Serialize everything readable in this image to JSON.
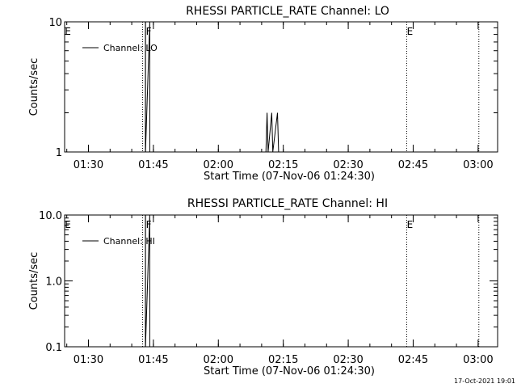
{
  "chart_data": [
    {
      "type": "line",
      "title": "RHESSI PARTICLE_RATE Channel: LO",
      "xlabel": "Start Time (07-Nov-06 01:24:30)",
      "ylabel": "Counts/sec",
      "y_scale": "log",
      "ylim": [
        1,
        10
      ],
      "ytick_labels": [
        {
          "value": 1,
          "label": "1"
        },
        {
          "value": 10,
          "label": "10"
        }
      ],
      "xtick_labels": [
        "01:30",
        "01:45",
        "02:00",
        "02:15",
        "02:30",
        "02:45",
        "03:00"
      ],
      "xlim": [
        "01:24:30",
        "03:04:30"
      ],
      "legend": {
        "entry": "Channel: LO",
        "position": "top-left"
      },
      "series": [
        {
          "name": "Channel: LO",
          "points": [
            [
              "01:43:10",
              10
            ],
            [
              "01:43:10",
              1
            ],
            [
              "01:44:10",
              10
            ],
            [
              "01:44:10",
              1
            ],
            [
              "02:11:00",
              1
            ],
            [
              "02:11:15",
              2
            ],
            [
              "02:11:30",
              1
            ],
            [
              "02:12:20",
              2
            ],
            [
              "02:12:35",
              1
            ],
            [
              "02:13:40",
              2
            ],
            [
              "02:13:55",
              1
            ]
          ]
        }
      ],
      "markers": [
        {
          "time": "01:24:30",
          "label": "E",
          "style": "solid"
        },
        {
          "time": "01:42:30",
          "label": "",
          "style": "dotted"
        },
        {
          "time": "01:43:10",
          "label": "F",
          "style": "solid"
        },
        {
          "time": "02:43:30",
          "label": "E",
          "style": "dotted"
        },
        {
          "time": "03:00:10",
          "label": "",
          "style": "dotted"
        }
      ]
    },
    {
      "type": "line",
      "title": "RHESSI PARTICLE_RATE Channel: HI",
      "xlabel": "Start Time (07-Nov-06 01:24:30)",
      "ylabel": "Counts/sec",
      "y_scale": "log",
      "ylim": [
        0.1,
        10
      ],
      "ytick_labels": [
        {
          "value": 0.1,
          "label": "0.1"
        },
        {
          "value": 1,
          "label": "1.0"
        },
        {
          "value": 10,
          "label": "10.0"
        }
      ],
      "xtick_labels": [
        "01:30",
        "01:45",
        "02:00",
        "02:15",
        "02:30",
        "02:45",
        "03:00"
      ],
      "xlim": [
        "01:24:30",
        "03:04:30"
      ],
      "legend": {
        "entry": "Channel: HI",
        "position": "top-left"
      },
      "series": [
        {
          "name": "Channel: HI",
          "points": [
            [
              "01:43:10",
              10
            ],
            [
              "01:43:10",
              0.1
            ],
            [
              "01:44:10",
              10
            ],
            [
              "01:44:10",
              0.1
            ]
          ]
        }
      ],
      "markers": [
        {
          "time": "01:24:30",
          "label": "E",
          "style": "solid"
        },
        {
          "time": "01:42:30",
          "label": "",
          "style": "dotted"
        },
        {
          "time": "01:43:10",
          "label": "F",
          "style": "solid"
        },
        {
          "time": "02:43:30",
          "label": "E",
          "style": "dotted"
        },
        {
          "time": "03:00:10",
          "label": "",
          "style": "dotted"
        }
      ]
    }
  ],
  "footer": {
    "timestamp": "17-Oct-2021 19:01"
  },
  "colors": {
    "foreground": "#000000",
    "background": "#ffffff"
  }
}
